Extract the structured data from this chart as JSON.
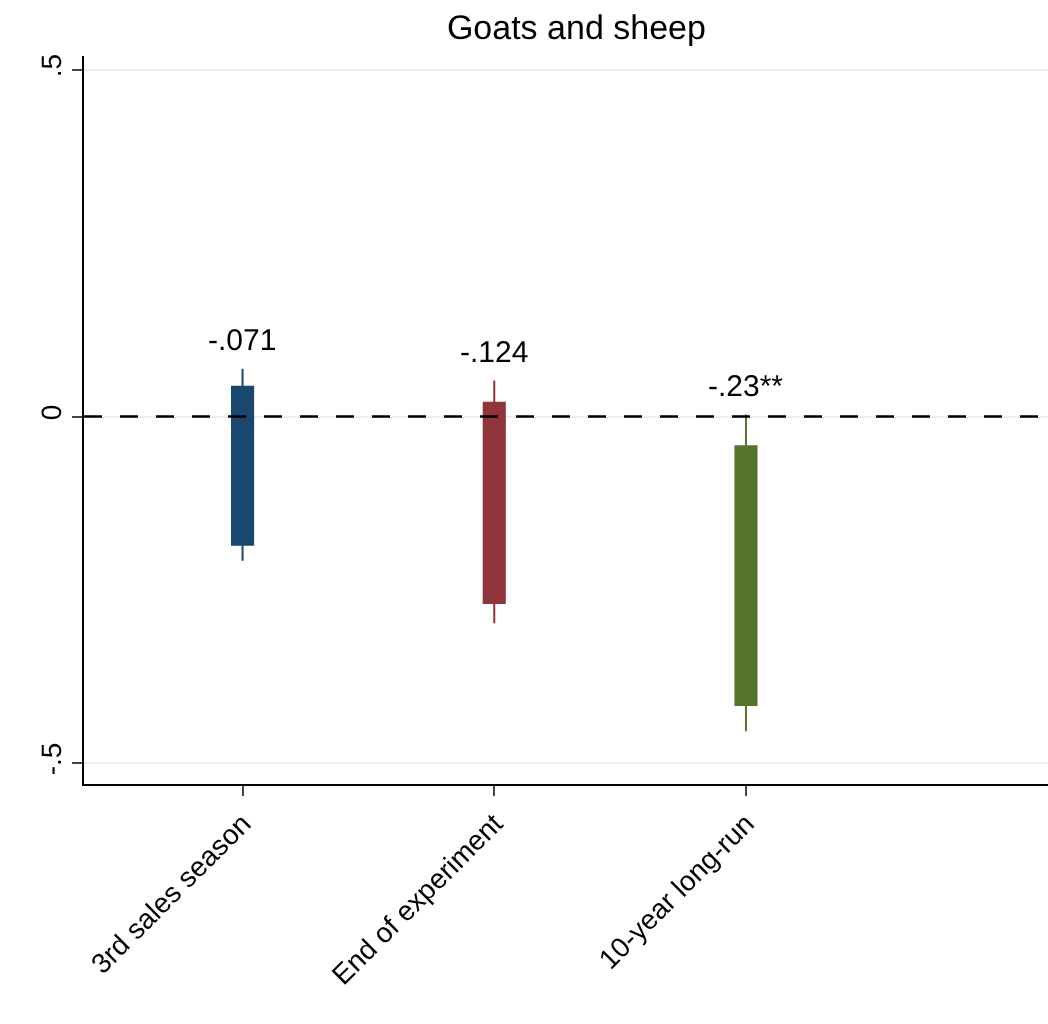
{
  "chart_data": {
    "type": "candlestick",
    "title": "Goats and sheep",
    "categories": [
      "3rd sales season",
      "End of experiment",
      "10-year long-run"
    ],
    "ohlc": [
      [
        -0.185,
        0.069,
        -0.208,
        0.043
      ],
      [
        -0.269,
        0.052,
        -0.298,
        0.02
      ],
      [
        -0.416,
        0.003,
        -0.454,
        -0.043
      ]
    ],
    "colors": [
      "#1a476f",
      "#90353b",
      "#55752f"
    ],
    "annotations": [
      {
        "text": "-.071",
        "x": "3rd sales season",
        "y": 0.069
      },
      {
        "text": "-.124",
        "x": "End of experiment",
        "y": 0.052
      },
      {
        "text": "-.23**",
        "x": "10-year long-run",
        "y": 0.003
      }
    ],
    "ref_lines": [
      {
        "axis": "y",
        "value": 0,
        "label": null,
        "color": "#000000",
        "line_style": "dashed"
      }
    ],
    "ylim": [
      -0.53,
      0.52
    ],
    "yticks": [
      {
        "value": -0.5,
        "label": "-.5"
      },
      0,
      {
        "value": 0.5,
        "label": ".5"
      }
    ],
    "grid": "y"
  }
}
